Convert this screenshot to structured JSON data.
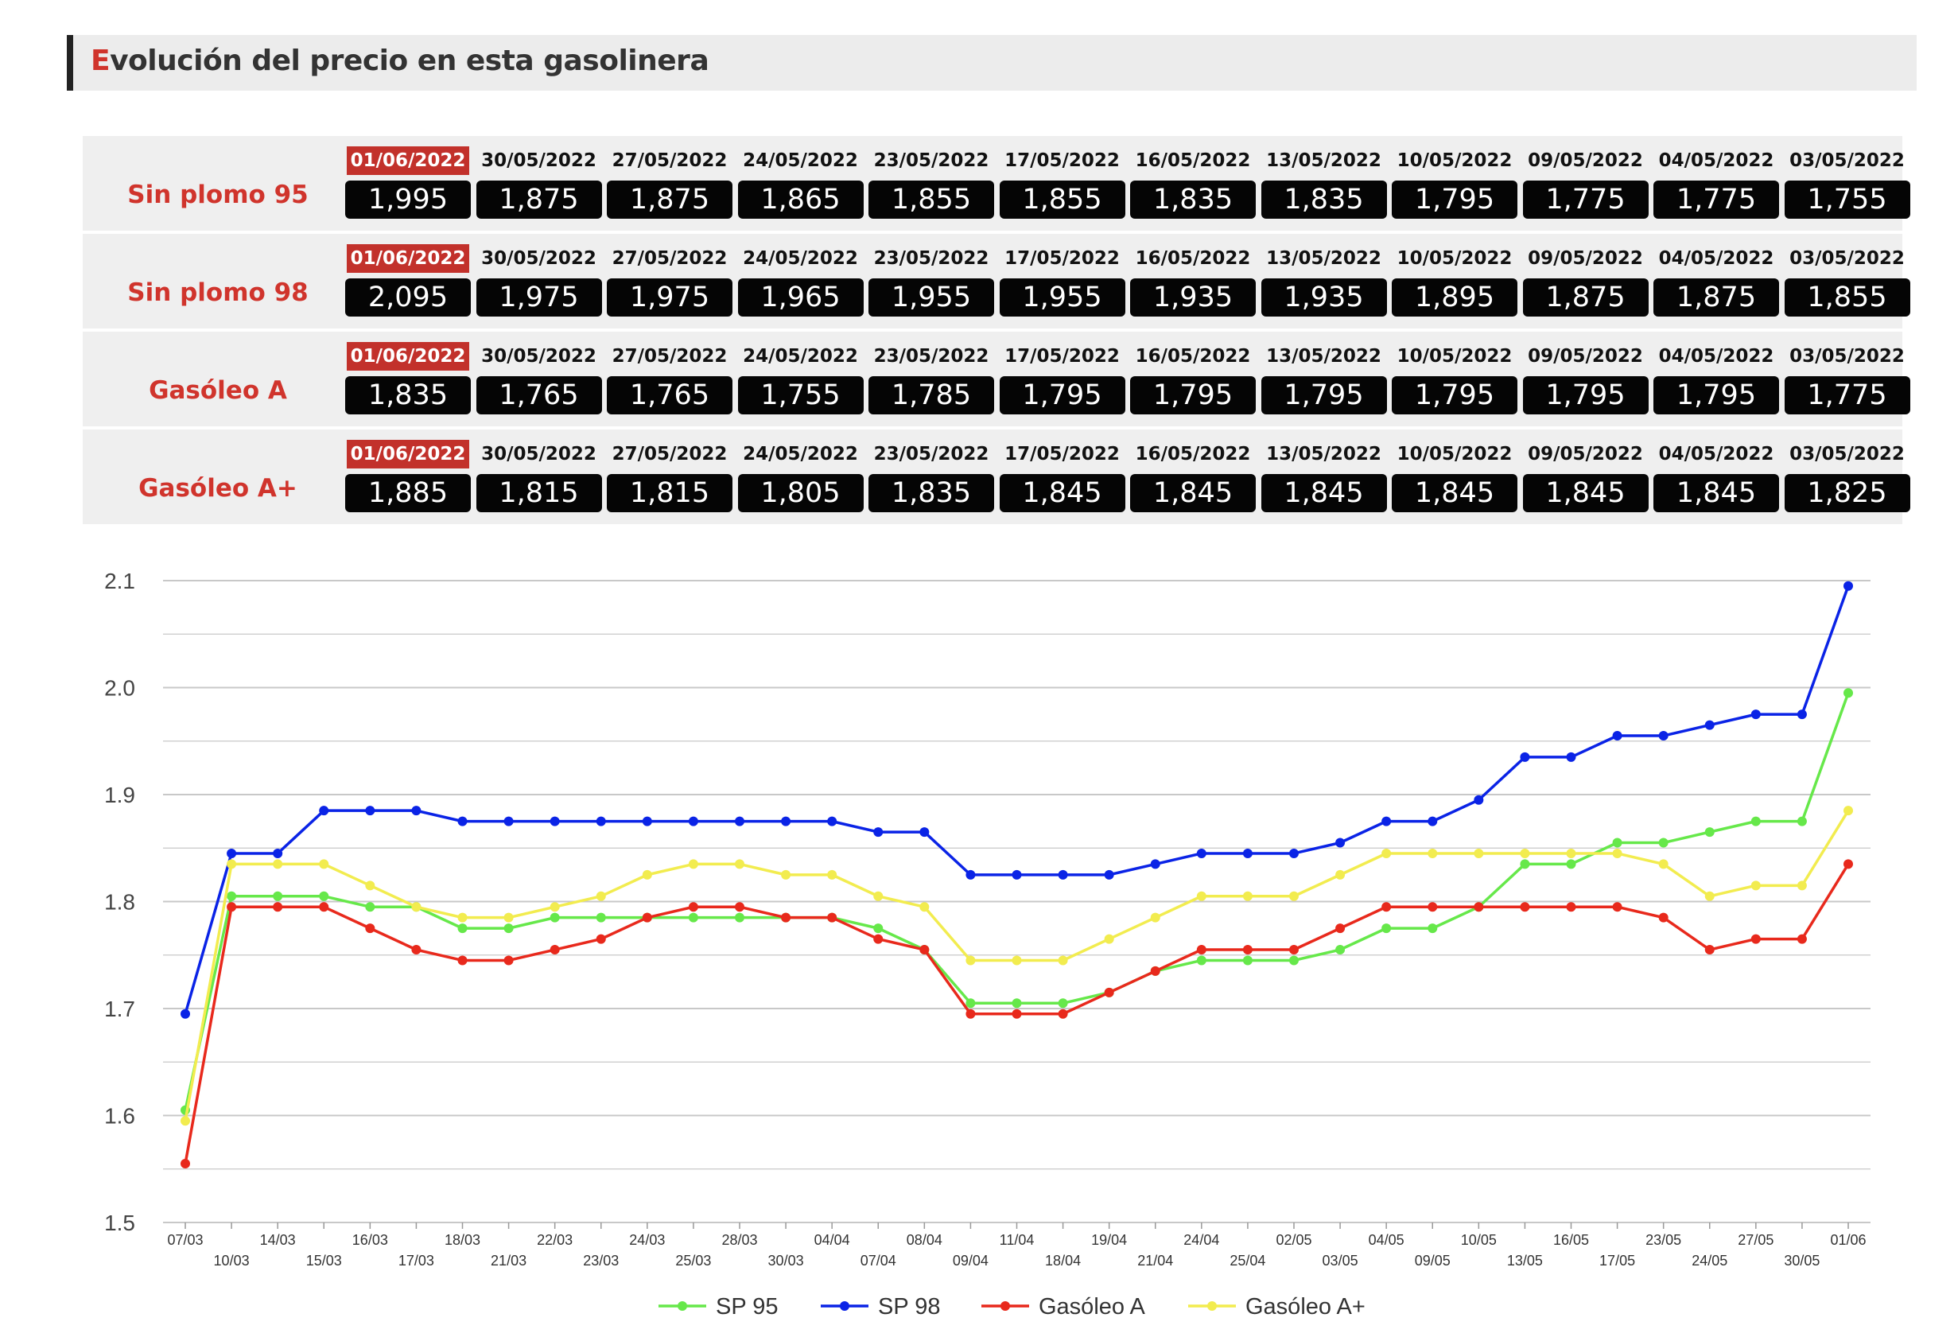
{
  "header": {
    "title_first": "E",
    "title_rest": "volución del precio en esta gasolinera"
  },
  "table": {
    "dates": [
      "01/06/2022",
      "30/05/2022",
      "27/05/2022",
      "24/05/2022",
      "23/05/2022",
      "17/05/2022",
      "16/05/2022",
      "13/05/2022",
      "10/05/2022",
      "09/05/2022",
      "04/05/2022",
      "03/05/2022"
    ],
    "rows": [
      {
        "name": "Sin plomo 95",
        "prices": [
          "1,995",
          "1,875",
          "1,875",
          "1,865",
          "1,855",
          "1,855",
          "1,835",
          "1,835",
          "1,795",
          "1,775",
          "1,775",
          "1,755"
        ]
      },
      {
        "name": "Sin plomo 98",
        "prices": [
          "2,095",
          "1,975",
          "1,975",
          "1,965",
          "1,955",
          "1,955",
          "1,935",
          "1,935",
          "1,895",
          "1,875",
          "1,875",
          "1,855"
        ]
      },
      {
        "name": "Gasóleo A",
        "prices": [
          "1,835",
          "1,765",
          "1,765",
          "1,755",
          "1,785",
          "1,795",
          "1,795",
          "1,795",
          "1,795",
          "1,795",
          "1,795",
          "1,775"
        ]
      },
      {
        "name": "Gasóleo A+",
        "prices": [
          "1,885",
          "1,815",
          "1,815",
          "1,805",
          "1,835",
          "1,845",
          "1,845",
          "1,845",
          "1,845",
          "1,845",
          "1,845",
          "1,825"
        ]
      }
    ]
  },
  "colors": {
    "accent": "#d0342c",
    "sp95": "#66e84a",
    "sp98": "#0a23e6",
    "gasoleo_a": "#e8291c",
    "gasoleo_a_plus": "#f2ec4f",
    "grid": "#c8c8c8"
  },
  "chart_data": {
    "type": "line",
    "ylim": [
      1.5,
      2.1
    ],
    "yticks": [
      "1.5",
      "1.6",
      "1.7",
      "1.8",
      "1.9",
      "2.0",
      "2.1"
    ],
    "grid": true,
    "legend_position": "bottom",
    "x": [
      "07/03",
      "10/03",
      "14/03",
      "15/03",
      "16/03",
      "17/03",
      "18/03",
      "21/03",
      "22/03",
      "23/03",
      "24/03",
      "25/03",
      "28/03",
      "30/03",
      "04/04",
      "07/04",
      "08/04",
      "09/04",
      "11/04",
      "18/04",
      "19/04",
      "21/04",
      "24/04",
      "25/04",
      "02/05",
      "03/05",
      "04/05",
      "09/05",
      "10/05",
      "13/05",
      "16/05",
      "17/05",
      "23/05",
      "24/05",
      "27/05",
      "30/05",
      "01/06"
    ],
    "series": [
      {
        "name": "SP 95",
        "values": [
          1.605,
          1.805,
          1.805,
          1.805,
          1.795,
          1.795,
          1.775,
          1.775,
          1.785,
          1.785,
          1.785,
          1.785,
          1.785,
          1.785,
          1.785,
          1.775,
          1.755,
          1.705,
          1.705,
          1.705,
          1.715,
          1.735,
          1.745,
          1.745,
          1.745,
          1.755,
          1.775,
          1.775,
          1.795,
          1.835,
          1.835,
          1.855,
          1.855,
          1.865,
          1.875,
          1.875,
          1.995
        ]
      },
      {
        "name": "SP 98",
        "values": [
          1.695,
          1.845,
          1.845,
          1.885,
          1.885,
          1.885,
          1.875,
          1.875,
          1.875,
          1.875,
          1.875,
          1.875,
          1.875,
          1.875,
          1.875,
          1.865,
          1.865,
          1.825,
          1.825,
          1.825,
          1.825,
          1.835,
          1.845,
          1.845,
          1.845,
          1.855,
          1.875,
          1.875,
          1.895,
          1.935,
          1.935,
          1.955,
          1.955,
          1.965,
          1.975,
          1.975,
          2.095
        ]
      },
      {
        "name": "Gasóleo A",
        "values": [
          1.555,
          1.795,
          1.795,
          1.795,
          1.775,
          1.755,
          1.745,
          1.745,
          1.755,
          1.765,
          1.785,
          1.795,
          1.795,
          1.785,
          1.785,
          1.765,
          1.755,
          1.695,
          1.695,
          1.695,
          1.715,
          1.735,
          1.755,
          1.755,
          1.755,
          1.775,
          1.795,
          1.795,
          1.795,
          1.795,
          1.795,
          1.795,
          1.785,
          1.755,
          1.765,
          1.765,
          1.835
        ]
      },
      {
        "name": "Gasóleo A+",
        "values": [
          1.595,
          1.835,
          1.835,
          1.835,
          1.815,
          1.795,
          1.785,
          1.785,
          1.795,
          1.805,
          1.825,
          1.835,
          1.835,
          1.825,
          1.825,
          1.805,
          1.795,
          1.745,
          1.745,
          1.745,
          1.765,
          1.785,
          1.805,
          1.805,
          1.805,
          1.825,
          1.845,
          1.845,
          1.845,
          1.845,
          1.845,
          1.845,
          1.835,
          1.805,
          1.815,
          1.815,
          1.885
        ]
      }
    ]
  }
}
